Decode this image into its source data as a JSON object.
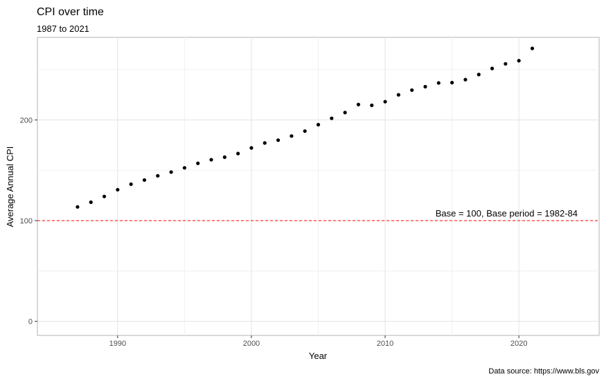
{
  "chart_data": {
    "type": "scatter",
    "title": "CPI over time",
    "subtitle": "1987 to 2021",
    "xlabel": "Year",
    "ylabel": "Average Annual CPI",
    "caption": "Data source: https://www.bls.gov",
    "xlim": [
      1984,
      2026
    ],
    "ylim": [
      -14,
      282
    ],
    "x_ticks": [
      1990,
      2000,
      2010,
      2020
    ],
    "y_ticks": [
      0,
      100,
      200
    ],
    "grid": true,
    "reference_line": {
      "y": 100,
      "color": "#ff0000",
      "style": "dashed",
      "label": "Base = 100, Base period = 1982-84"
    },
    "point_color": "#000000",
    "x": [
      1987,
      1988,
      1989,
      1990,
      1991,
      1992,
      1993,
      1994,
      1995,
      1996,
      1997,
      1998,
      1999,
      2000,
      2001,
      2002,
      2003,
      2004,
      2005,
      2006,
      2007,
      2008,
      2009,
      2010,
      2011,
      2012,
      2013,
      2014,
      2015,
      2016,
      2017,
      2018,
      2019,
      2020,
      2021
    ],
    "y": [
      113.6,
      118.3,
      124.0,
      130.7,
      136.2,
      140.3,
      144.5,
      148.2,
      152.4,
      156.9,
      160.5,
      163.0,
      166.6,
      172.2,
      177.1,
      179.9,
      184.0,
      188.9,
      195.3,
      201.6,
      207.3,
      215.3,
      214.5,
      218.1,
      224.9,
      229.6,
      233.0,
      236.7,
      237.0,
      240.0,
      245.1,
      251.1,
      255.7,
      258.8,
      271.0
    ]
  }
}
